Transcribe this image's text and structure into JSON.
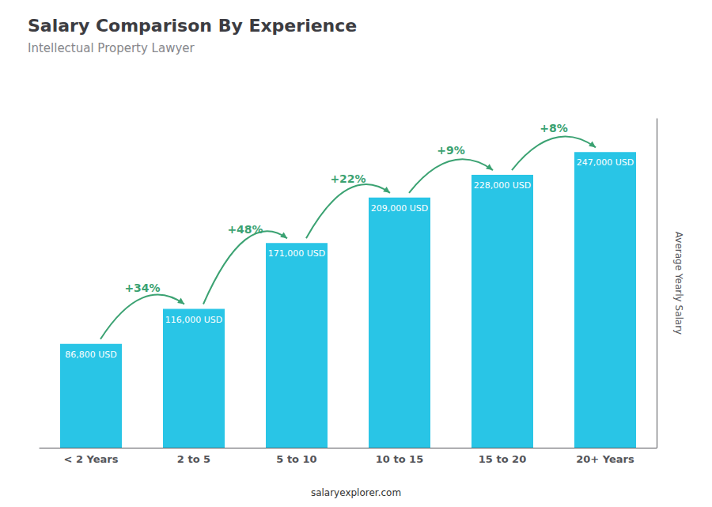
{
  "chart_data": {
    "type": "bar",
    "title": "Salary Comparison By Experience",
    "subtitle": "Intellectual Property Lawyer",
    "categories": [
      "< 2 Years",
      "2 to 5",
      "5 to 10",
      "10 to 15",
      "15 to 20",
      "20+ Years"
    ],
    "values": [
      86800,
      116000,
      171000,
      209000,
      228000,
      247000
    ],
    "value_labels": [
      "86,800 USD",
      "116,000 USD",
      "171,000 USD",
      "209,000 USD",
      "228,000 USD",
      "247,000 USD"
    ],
    "data_labels": true,
    "color": "#29c5e6",
    "ylabel": "Average Yearly Salary",
    "ylim": [
      0,
      275000
    ],
    "annotations": [
      "+34%",
      "+48%",
      "+22%",
      "+9%",
      "+8%"
    ],
    "footer": "salaryexplorer.com",
    "grid": false,
    "tick_labels": "x"
  }
}
